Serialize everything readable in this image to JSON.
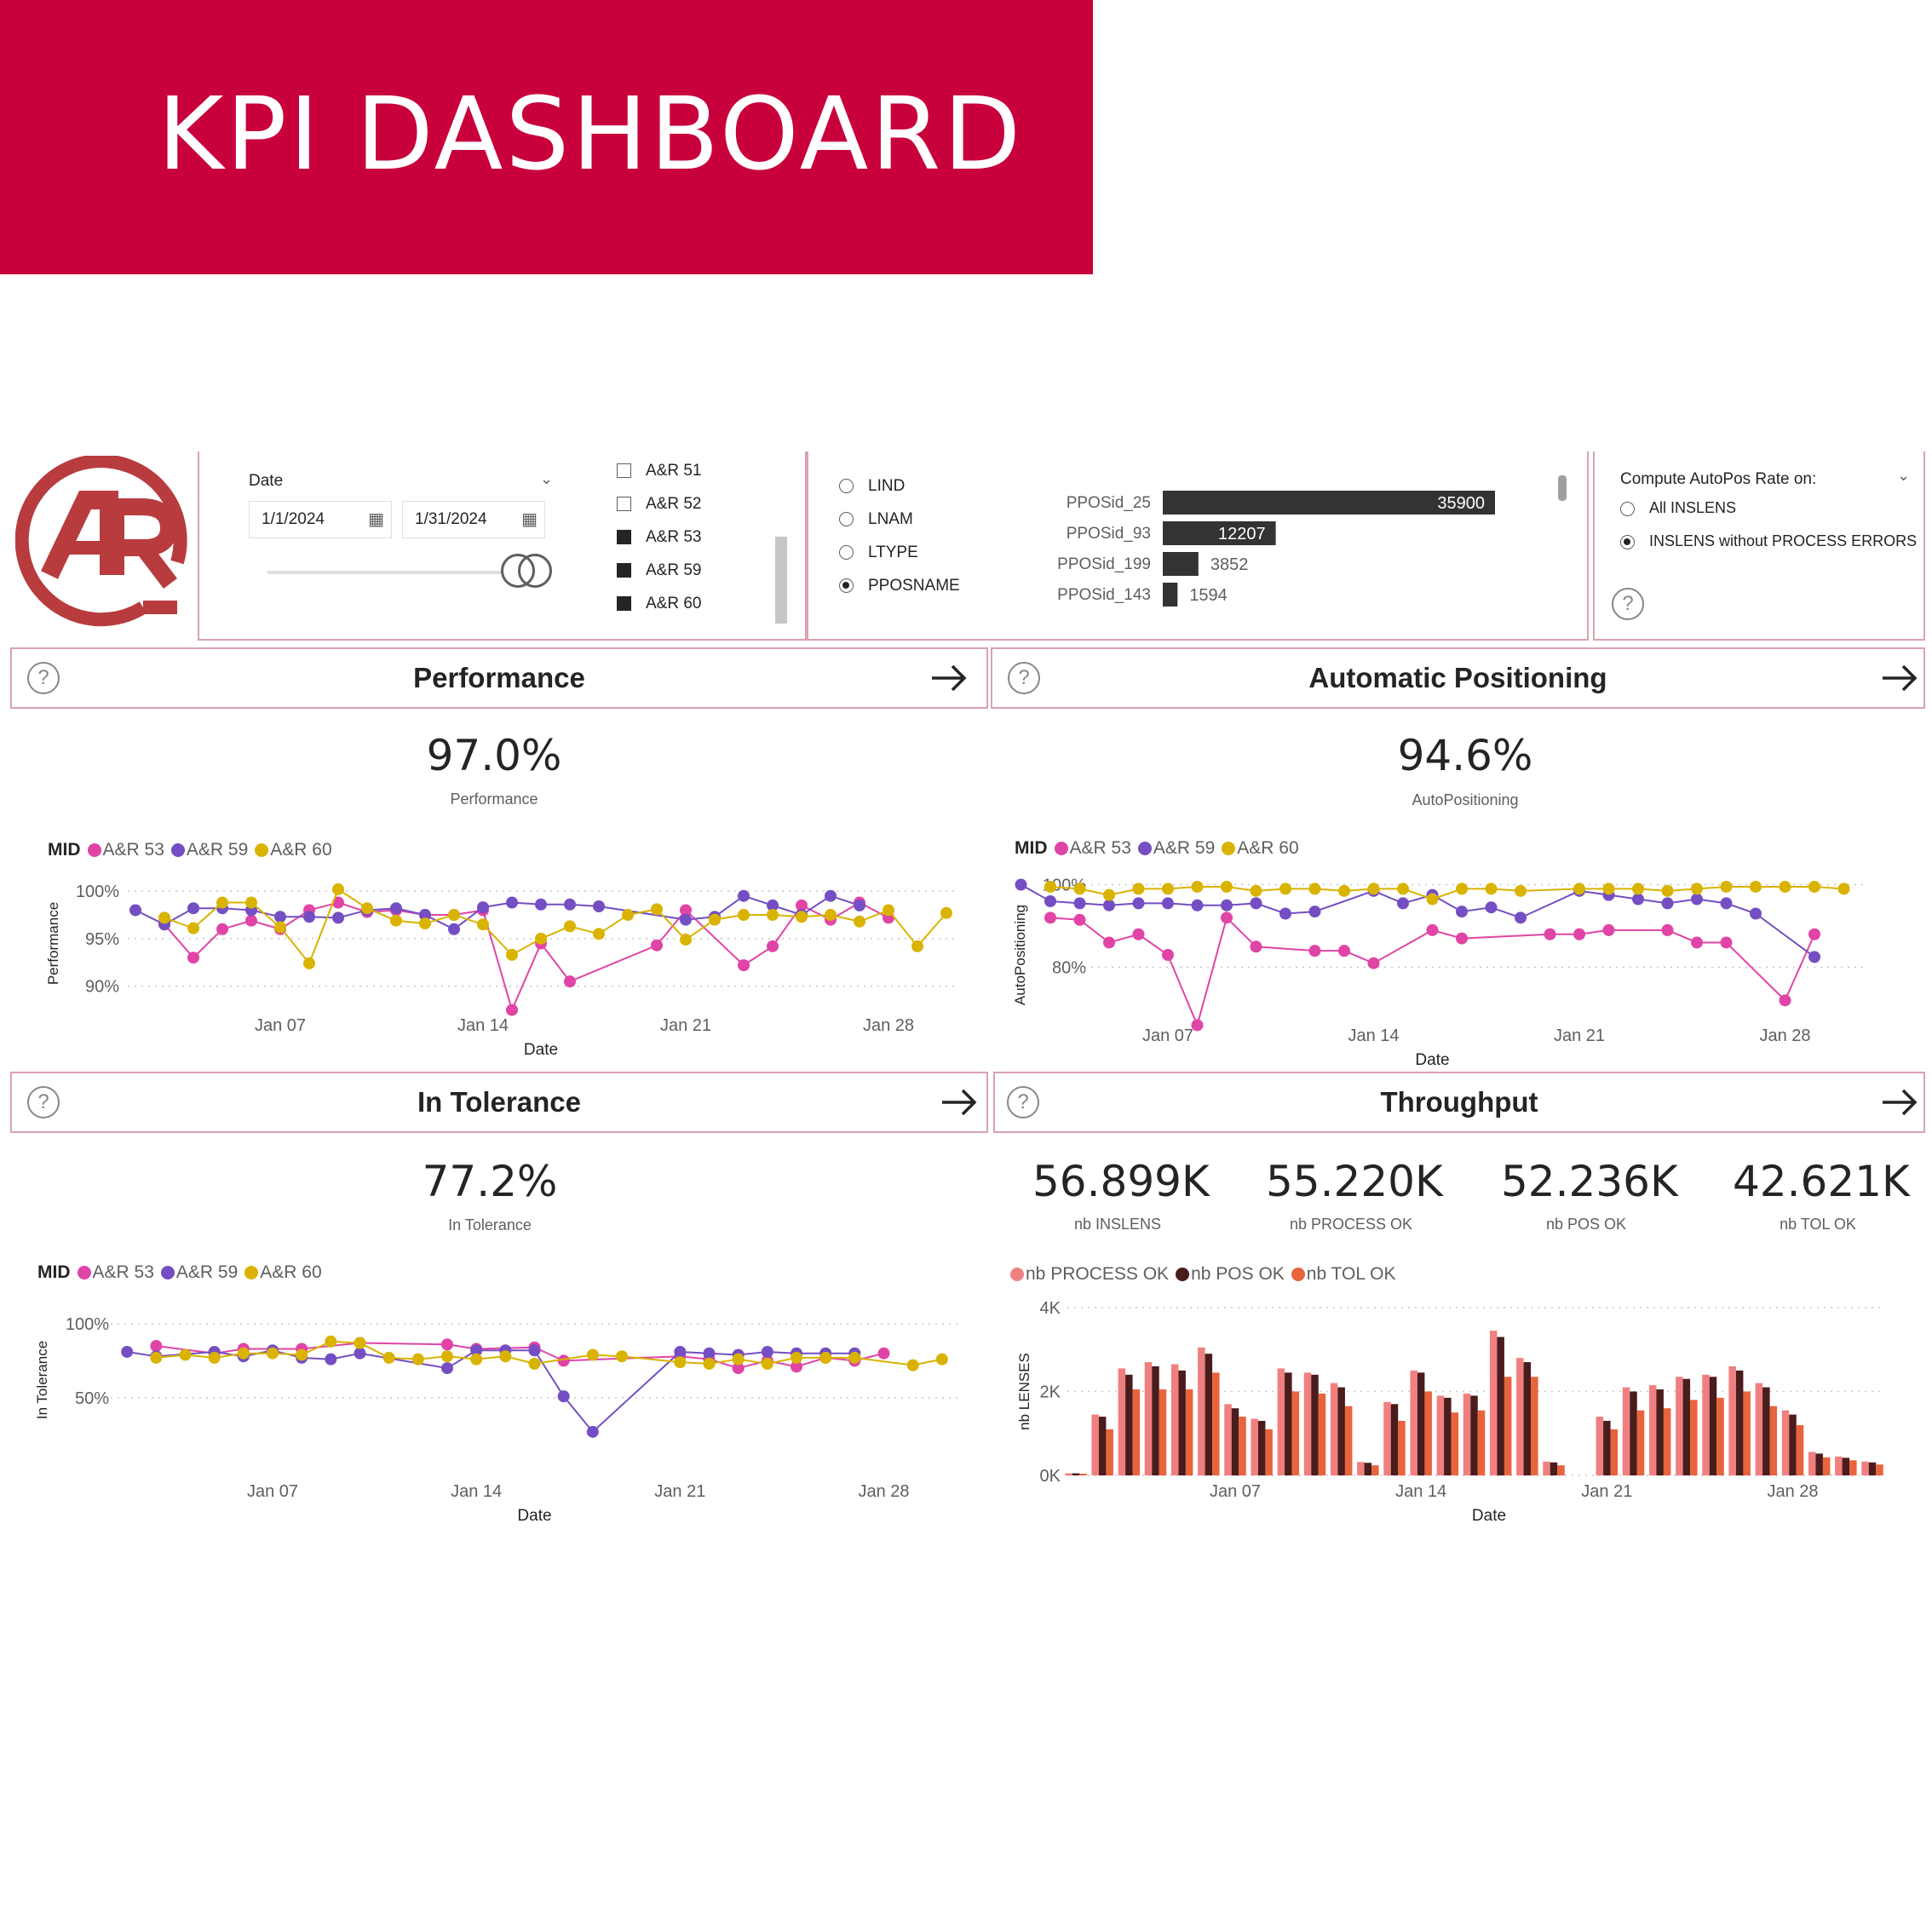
{
  "banner": {
    "title": "KPI DASHBOARD"
  },
  "filters": {
    "date": {
      "label": "Date",
      "start": "1/1/2024",
      "end": "1/31/2024"
    },
    "machines": [
      {
        "label": "A&R 51",
        "checked": false
      },
      {
        "label": "A&R 52",
        "checked": false
      },
      {
        "label": "A&R 53",
        "checked": true
      },
      {
        "label": "A&R 59",
        "checked": true
      },
      {
        "label": "A&R 60",
        "checked": true
      }
    ],
    "group_by": [
      {
        "label": "LIND",
        "selected": false
      },
      {
        "label": "LNAM",
        "selected": false
      },
      {
        "label": "LTYPE",
        "selected": false
      },
      {
        "label": "PPOSNAME",
        "selected": true
      }
    ],
    "ppos_bars": [
      {
        "name": "PPOSid_25",
        "value": 35900,
        "value_label": "35900"
      },
      {
        "name": "PPOSid_93",
        "value": 12207,
        "value_label": "12207"
      },
      {
        "name": "PPOSid_199",
        "value": 3852,
        "value_label": "3852"
      },
      {
        "name": "PPOSid_143",
        "value": 1594,
        "value_label": "1594"
      }
    ],
    "autopos": {
      "title": "Compute AutoPos Rate on:",
      "options": [
        {
          "label": "All INSLENS",
          "selected": false
        },
        {
          "label": "INSLENS without PROCESS ERRORS",
          "selected": true
        }
      ]
    }
  },
  "colors": {
    "brand": "#c8003c",
    "logo": "#b83c3e",
    "a53": "#e044a7",
    "a59": "#744ec2",
    "a60": "#d9b300",
    "process_ok": "#f08080",
    "pos_ok": "#4a1c1c",
    "tol_ok": "#e8643c"
  },
  "legend": {
    "field": "MID",
    "series": [
      "A&R 53",
      "A&R 59",
      "A&R 60"
    ]
  },
  "performance": {
    "title": "Performance",
    "kpi_value": "97.0%",
    "kpi_label": "Performance"
  },
  "autopositioning": {
    "title": "Automatic Positioning",
    "kpi_value": "94.6%",
    "kpi_label": "AutoPositioning"
  },
  "tolerance": {
    "title": "In Tolerance",
    "kpi_value": "77.2%",
    "kpi_label": "In Tolerance"
  },
  "throughput": {
    "title": "Throughput",
    "cards": [
      {
        "value": "56.899K",
        "label": "nb INSLENS"
      },
      {
        "value": "55.220K",
        "label": "nb PROCESS OK"
      },
      {
        "value": "52.236K",
        "label": "nb POS OK"
      },
      {
        "value": "42.621K",
        "label": "nb TOL OK"
      }
    ],
    "legend": [
      "nb PROCESS OK",
      "nb POS OK",
      "nb TOL OK"
    ]
  },
  "chart_data": [
    {
      "id": "performance",
      "type": "line",
      "xlabel": "Date",
      "ylabel": "Performance",
      "x": [
        2,
        3,
        4,
        5,
        6,
        7,
        8,
        9,
        10,
        11,
        12,
        13,
        14,
        15,
        16,
        17,
        18,
        19,
        20,
        21,
        22,
        23,
        24,
        25,
        26,
        27,
        28,
        29,
        30
      ],
      "xticks": [
        {
          "day": 7,
          "label": "Jan 07"
        },
        {
          "day": 14,
          "label": "Jan 14"
        },
        {
          "day": 21,
          "label": "Jan 21"
        },
        {
          "day": 28,
          "label": "Jan 28"
        }
      ],
      "yticks": [
        {
          "v": 100,
          "label": "100%"
        },
        {
          "v": 95,
          "label": "95%"
        },
        {
          "v": 90,
          "label": "90%"
        }
      ],
      "ylim": [
        88,
        101
      ],
      "series": [
        {
          "name": "A&R 53",
          "values": [
            null,
            96.5,
            93,
            96,
            96.9,
            96,
            98,
            98.8,
            97.8,
            98,
            97.5,
            97.5,
            98,
            87.5,
            94.5,
            90.5,
            null,
            null,
            94.3,
            98,
            null,
            92.2,
            94.2,
            98.5,
            97,
            98.8,
            97.2,
            null,
            null
          ]
        },
        {
          "name": "A&R 59",
          "values": [
            98,
            96.5,
            98.2,
            98.2,
            98,
            97.3,
            97.3,
            97.2,
            98,
            98.2,
            97.5,
            96,
            98.3,
            98.8,
            98.6,
            98.6,
            98.4,
            null,
            null,
            97,
            97.3,
            99.5,
            98.5,
            97.5,
            99.5,
            98.5,
            null,
            null,
            null
          ]
        },
        {
          "name": "A&R 60",
          "values": [
            null,
            97.2,
            96.1,
            98.8,
            98.8,
            96.2,
            92.4,
            100.2,
            98.2,
            96.9,
            96.6,
            97.5,
            96.5,
            93.3,
            95,
            96.3,
            95.5,
            97.5,
            98.1,
            94.9,
            97,
            97.5,
            97.5,
            97.3,
            97.5,
            96.8,
            98,
            94.2,
            97.7
          ]
        }
      ]
    },
    {
      "id": "autopositioning",
      "type": "line",
      "xlabel": "Date",
      "ylabel": "AutoPositioning",
      "x": [
        2,
        3,
        4,
        5,
        6,
        7,
        8,
        9,
        10,
        11,
        12,
        13,
        14,
        15,
        16,
        17,
        18,
        19,
        20,
        21,
        22,
        23,
        24,
        25,
        26,
        27,
        28,
        29,
        30
      ],
      "xticks": [
        {
          "day": 7,
          "label": "Jan 07"
        },
        {
          "day": 14,
          "label": "Jan 14"
        },
        {
          "day": 21,
          "label": "Jan 21"
        },
        {
          "day": 28,
          "label": "Jan 28"
        }
      ],
      "yticks": [
        {
          "v": 100,
          "label": "100%"
        },
        {
          "v": 80,
          "label": "80%"
        }
      ],
      "ylim": [
        63,
        103
      ],
      "series": [
        {
          "name": "A&R 53",
          "values": [
            null,
            92,
            91.5,
            86,
            88,
            83,
            66,
            92,
            85,
            null,
            84,
            84,
            81,
            null,
            89,
            87,
            null,
            null,
            88,
            88,
            89,
            null,
            89,
            86,
            86,
            null,
            72,
            88,
            null
          ]
        },
        {
          "name": "A&R 59",
          "values": [
            100,
            96,
            95.5,
            95,
            95.5,
            95.5,
            95,
            95,
            95.5,
            93,
            93.5,
            null,
            98.5,
            95.5,
            97.5,
            93.5,
            94.5,
            92,
            null,
            98.5,
            97.5,
            96.5,
            95.5,
            96.5,
            95.5,
            93,
            null,
            82.5,
            null
          ]
        },
        {
          "name": "A&R 60",
          "values": [
            null,
            99.5,
            99,
            97.5,
            99,
            99,
            99.5,
            99.5,
            98.5,
            99,
            99,
            98.5,
            99,
            99,
            96.5,
            99,
            99,
            98.5,
            null,
            99,
            99,
            99,
            98.5,
            99,
            99.5,
            99.5,
            99.5,
            99.5,
            99
          ]
        }
      ]
    },
    {
      "id": "tolerance",
      "type": "line",
      "xlabel": "Date",
      "ylabel": "In Tolerance",
      "x": [
        2,
        3,
        4,
        5,
        6,
        7,
        8,
        9,
        10,
        11,
        12,
        13,
        14,
        15,
        16,
        17,
        18,
        19,
        20,
        21,
        22,
        23,
        24,
        25,
        26,
        27,
        28,
        29,
        30
      ],
      "xticks": [
        {
          "day": 7,
          "label": "Jan 07"
        },
        {
          "day": 14,
          "label": "Jan 14"
        },
        {
          "day": 21,
          "label": "Jan 21"
        },
        {
          "day": 28,
          "label": "Jan 28"
        }
      ],
      "yticks": [
        {
          "v": 100,
          "label": "100%"
        },
        {
          "v": 50,
          "label": "50%"
        }
      ],
      "ylim": [
        20,
        104
      ],
      "series": [
        {
          "name": "A&R 53",
          "values": [
            null,
            85,
            null,
            80,
            83,
            null,
            83,
            null,
            87,
            null,
            null,
            86,
            83,
            null,
            84,
            75,
            null,
            null,
            null,
            78,
            76,
            70,
            75,
            71,
            77,
            75,
            80,
            null,
            null
          ]
        },
        {
          "name": "A&R 59",
          "values": [
            81,
            78,
            null,
            81,
            78,
            82,
            77,
            76,
            80,
            null,
            null,
            70,
            82,
            82,
            82,
            51,
            27,
            null,
            null,
            81,
            80,
            79,
            81,
            80,
            80,
            80,
            null,
            null,
            null
          ]
        },
        {
          "name": "A&R 60",
          "values": [
            null,
            77,
            79,
            77,
            80,
            80,
            79,
            88,
            87,
            77,
            76,
            78,
            76,
            78,
            73,
            null,
            79,
            78,
            null,
            74,
            73,
            76,
            73,
            77,
            77,
            77,
            null,
            72,
            76
          ]
        }
      ]
    },
    {
      "id": "throughput",
      "type": "bar",
      "xlabel": "Date",
      "ylabel": "nb LENSES",
      "x": [
        1,
        2,
        3,
        4,
        5,
        6,
        7,
        8,
        9,
        10,
        11,
        12,
        13,
        14,
        15,
        16,
        17,
        18,
        19,
        20,
        21,
        22,
        23,
        24,
        25,
        26,
        27,
        28,
        29,
        30,
        31
      ],
      "xticks": [
        {
          "day": 7,
          "label": "Jan 07"
        },
        {
          "day": 14,
          "label": "Jan 14"
        },
        {
          "day": 21,
          "label": "Jan 21"
        },
        {
          "day": 28,
          "label": "Jan 28"
        }
      ],
      "yticks": [
        {
          "v": 4000,
          "label": "4K"
        },
        {
          "v": 2000,
          "label": "2K"
        },
        {
          "v": 0,
          "label": "0K"
        }
      ],
      "ylim": [
        0,
        4000
      ],
      "series": [
        {
          "name": "nb PROCESS OK",
          "values": [
            50,
            1450,
            2550,
            2700,
            2650,
            3050,
            1700,
            1350,
            2550,
            2450,
            2200,
            320,
            1750,
            2500,
            1900,
            1950,
            3450,
            2800,
            330,
            0,
            1400,
            2100,
            2150,
            2350,
            2400,
            2600,
            2200,
            1550,
            560,
            450,
            330
          ]
        },
        {
          "name": "nb POS OK",
          "values": [
            50,
            1400,
            2400,
            2600,
            2500,
            2900,
            1600,
            1300,
            2450,
            2400,
            2100,
            300,
            1700,
            2450,
            1850,
            1900,
            3300,
            2700,
            310,
            0,
            1300,
            2000,
            2050,
            2300,
            2350,
            2500,
            2100,
            1450,
            520,
            420,
            310
          ]
        },
        {
          "name": "nb TOL OK",
          "values": [
            40,
            1100,
            2050,
            2050,
            2050,
            2450,
            1400,
            1100,
            2000,
            1950,
            1650,
            240,
            1300,
            2000,
            1500,
            1550,
            2350,
            2350,
            240,
            0,
            1100,
            1550,
            1600,
            1800,
            1850,
            2000,
            1650,
            1200,
            430,
            360,
            260
          ]
        }
      ]
    }
  ]
}
